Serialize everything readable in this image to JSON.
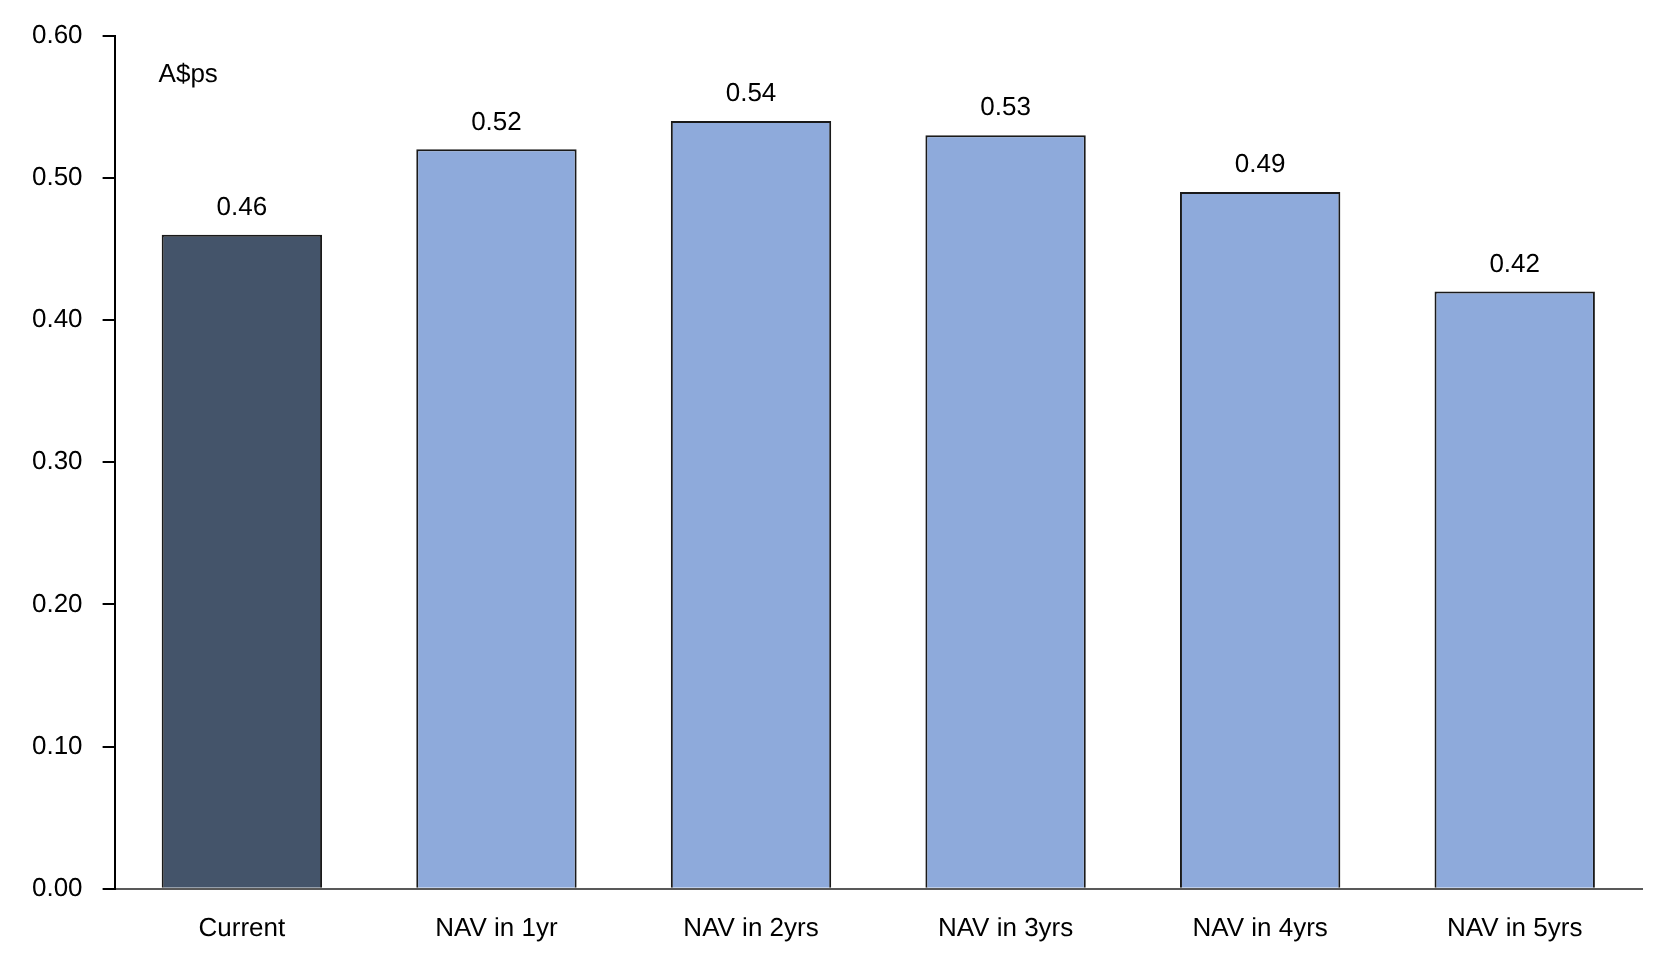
{
  "chart_data": {
    "type": "bar",
    "ylabel": "A$ps",
    "categories": [
      "Current",
      "NAV in 1yr",
      "NAV in 2yrs",
      "NAV in 3yrs",
      "NAV in 4yrs",
      "NAV in 5yrs"
    ],
    "values": [
      0.46,
      0.52,
      0.54,
      0.53,
      0.49,
      0.42
    ],
    "colors": [
      "#44546a",
      "#8eaadb",
      "#8eaadb",
      "#8eaadb",
      "#8eaadb",
      "#8eaadb"
    ],
    "ylim": [
      0,
      0.6
    ],
    "yticks": [
      {
        "value": 0,
        "label": "0.00"
      },
      {
        "value": 0.1,
        "label": "0.10"
      },
      {
        "value": 0.2,
        "label": "0.20"
      },
      {
        "value": 0.3,
        "label": "0.30"
      },
      {
        "value": 0.4,
        "label": "0.40"
      },
      {
        "value": 0.5,
        "label": "0.50"
      },
      {
        "value": 0.6,
        "label": "0.60"
      }
    ],
    "data_labels": true,
    "grid": false,
    "legend": false
  }
}
